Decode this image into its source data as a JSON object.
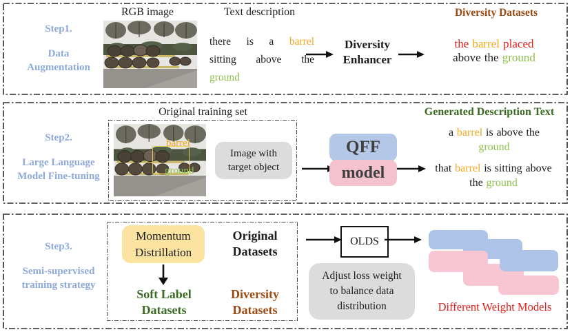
{
  "colors": {
    "ink": "#1C1C1C",
    "orange": "#F4A71D",
    "green": "#8FC14D",
    "red": "#E0201B",
    "brown": "#9C4A0F",
    "darkgreen": "#3A6B22",
    "step_blue": "#8EA9DB",
    "box_blue": "#B4C7E7",
    "box_pink": "#F4C2CE",
    "cascade_blue": "#AEC3E8",
    "cascade_pink": "#F7C6D2",
    "box_yellow": "#FBE3A2",
    "box_gray": "#DCDCDC"
  },
  "panel1": {
    "step_label": "Step1.",
    "step_name_lines": [
      "Data",
      "Augmentation"
    ],
    "rgb_image_label": "RGB image",
    "text_description_label": "Text description",
    "input_text_lines": [
      [
        {
          "t": "there",
          "c": "ink"
        },
        {
          "t": "is",
          "c": "ink"
        },
        {
          "t": "a",
          "c": "ink"
        },
        {
          "t": "barrel",
          "c": "orange"
        }
      ],
      [
        {
          "t": "sitting",
          "c": "ink"
        },
        {
          "t": "above",
          "c": "ink"
        },
        {
          "t": "the",
          "c": "ink"
        }
      ],
      [
        {
          "t": "ground",
          "c": "green"
        }
      ]
    ],
    "enhancer_lines": [
      "Diversity",
      "Enhancer"
    ],
    "heading": "Diversity Datasets",
    "output_text_lines": [
      [
        {
          "t": "the",
          "c": "red"
        },
        {
          "t": "barrel",
          "c": "orange"
        },
        {
          "t": "placed",
          "c": "red"
        }
      ],
      [
        {
          "t": "above",
          "c": "ink"
        },
        {
          "t": "the",
          "c": "ink"
        },
        {
          "t": "ground",
          "c": "green"
        }
      ]
    ]
  },
  "panel2": {
    "step_label": "Step2.",
    "step_name_lines": [
      "Large Language",
      "Model Fine-tuning"
    ],
    "training_set_label": "Original training set",
    "photo_labels": {
      "object": "barrel",
      "region": "ground"
    },
    "image_box_lines": [
      "Image with",
      "target object"
    ],
    "model_top": "QFF",
    "model_bottom": "model",
    "heading": "Generated Description Text",
    "gen_text1_lines": [
      [
        {
          "t": "a",
          "c": "ink"
        },
        {
          "t": "barrel",
          "c": "orange"
        },
        {
          "t": "is",
          "c": "ink"
        },
        {
          "t": "above",
          "c": "ink"
        },
        {
          "t": "the",
          "c": "ink"
        }
      ],
      [
        {
          "t": "ground",
          "c": "green"
        }
      ]
    ],
    "gen_text2_lines": [
      [
        {
          "t": "that",
          "c": "ink"
        },
        {
          "t": "barrel",
          "c": "orange"
        },
        {
          "t": "is",
          "c": "ink"
        },
        {
          "t": "sitting",
          "c": "ink"
        },
        {
          "t": "above",
          "c": "ink"
        }
      ],
      [
        {
          "t": "the",
          "c": "ink"
        },
        {
          "t": "ground",
          "c": "green"
        }
      ]
    ]
  },
  "panel3": {
    "step_label": "Step3.",
    "step_name_lines": [
      "Semi-supervised",
      "training strategy"
    ],
    "momentum_lines": [
      "Momentum",
      "Distrillation"
    ],
    "original_datasets_lines": [
      "Original",
      "Datasets"
    ],
    "soft_label_lines": [
      "Soft Label",
      "Datasets"
    ],
    "diversity_lines": [
      "Diversity",
      "Datasets"
    ],
    "olds_label": "OLDS",
    "adjust_lines": [
      "Adjust loss weight",
      "to balance data",
      "distribution"
    ],
    "caption": "Different Weight Models"
  }
}
